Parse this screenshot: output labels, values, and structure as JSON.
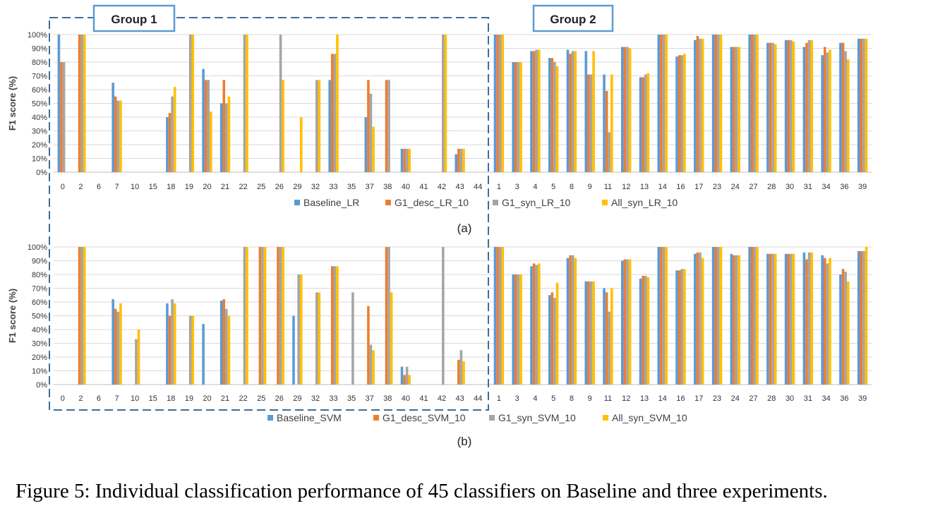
{
  "caption": "Figure 5: Individual classification performance of 45 classifiers on Baseline and three experiments.",
  "colors": {
    "baseline": "#5b9bd5",
    "desc": "#ed7d31",
    "syn": "#a5a5a5",
    "all": "#ffc000",
    "group_box": "#3c6e9a",
    "group_label_border": "#5b9bd5"
  },
  "group_labels": [
    "Group 1",
    "Group 2"
  ],
  "chart_data": [
    {
      "type": "bar",
      "panel_label": "(a)",
      "ylabel": "F1 score (%)",
      "ylim": [
        0,
        100
      ],
      "yticks": [
        "0%",
        "10%",
        "20%",
        "30%",
        "40%",
        "50%",
        "60%",
        "70%",
        "80%",
        "90%",
        "100%"
      ],
      "legend_position": "bottom",
      "groups": [
        {
          "label": "Group 1",
          "categories": [
            "0",
            "2",
            "6",
            "7",
            "10",
            "15",
            "18",
            "19",
            "20",
            "21",
            "22",
            "25",
            "26",
            "29",
            "32",
            "33",
            "35",
            "37",
            "38",
            "40",
            "41",
            "42",
            "43",
            "44"
          ],
          "series": [
            {
              "name": "Baseline_LR",
              "values": [
                100,
                0,
                0,
                65,
                0,
                0,
                40,
                0,
                75,
                50,
                0,
                0,
                0,
                0,
                0,
                67,
                0,
                40,
                0,
                17,
                0,
                0,
                13,
                0
              ]
            },
            {
              "name": "G1_desc_LR_10",
              "values": [
                80,
                100,
                0,
                55,
                0,
                0,
                43,
                0,
                67,
                67,
                0,
                0,
                0,
                0,
                0,
                86,
                0,
                67,
                67,
                17,
                0,
                0,
                17,
                0
              ]
            },
            {
              "name": "G1_syn_LR_10",
              "values": [
                80,
                100,
                0,
                52,
                0,
                0,
                55,
                100,
                67,
                50,
                100,
                0,
                100,
                0,
                67,
                86,
                0,
                57,
                67,
                17,
                0,
                100,
                17,
                0
              ]
            },
            {
              "name": "All_syn_LR_10",
              "values": [
                0,
                100,
                0,
                52,
                0,
                0,
                62,
                100,
                44,
                55,
                100,
                0,
                67,
                40,
                67,
                100,
                0,
                33,
                0,
                17,
                0,
                100,
                17,
                0
              ]
            }
          ]
        },
        {
          "label": "Group 2",
          "categories": [
            "1",
            "3",
            "4",
            "5",
            "8",
            "9",
            "11",
            "12",
            "13",
            "14",
            "16",
            "17",
            "23",
            "24",
            "27",
            "28",
            "30",
            "31",
            "34",
            "36",
            "39"
          ],
          "series": [
            {
              "name": "Baseline_LR",
              "values": [
                100,
                80,
                88,
                83,
                89,
                88,
                71,
                91,
                69,
                100,
                84,
                96,
                100,
                91,
                100,
                94,
                96,
                91,
                85,
                94,
                97
              ]
            },
            {
              "name": "G1_desc_LR_10",
              "values": [
                100,
                80,
                88,
                83,
                86,
                71,
                59,
                91,
                69,
                100,
                85,
                99,
                100,
                91,
                100,
                94,
                96,
                94,
                91,
                94,
                97
              ]
            },
            {
              "name": "G1_syn_LR_10",
              "values": [
                100,
                80,
                89,
                80,
                88,
                71,
                29,
                91,
                71,
                100,
                85,
                97,
                100,
                91,
                100,
                94,
                96,
                96,
                87,
                88,
                97
              ]
            },
            {
              "name": "All_syn_LR_10",
              "values": [
                100,
                80,
                89,
                77,
                88,
                88,
                71,
                90,
                72,
                100,
                86,
                97,
                100,
                91,
                100,
                93,
                95,
                96,
                89,
                82,
                97
              ]
            }
          ]
        }
      ]
    },
    {
      "type": "bar",
      "panel_label": "(b)",
      "ylabel": "F1 score (%)",
      "ylim": [
        0,
        100
      ],
      "yticks": [
        "0%",
        "10%",
        "20%",
        "30%",
        "40%",
        "50%",
        "60%",
        "70%",
        "80%",
        "90%",
        "100%"
      ],
      "legend_position": "bottom",
      "groups": [
        {
          "label": "Group 1",
          "categories": [
            "0",
            "2",
            "6",
            "7",
            "10",
            "15",
            "18",
            "19",
            "20",
            "21",
            "22",
            "25",
            "26",
            "29",
            "32",
            "33",
            "35",
            "37",
            "38",
            "40",
            "41",
            "42",
            "43",
            "44"
          ],
          "series": [
            {
              "name": "Baseline_SVM",
              "values": [
                0,
                0,
                0,
                62,
                0,
                0,
                59,
                0,
                44,
                61,
                0,
                0,
                0,
                50,
                0,
                0,
                0,
                0,
                0,
                13,
                0,
                0,
                0,
                0
              ]
            },
            {
              "name": "G1_desc_SVM_10",
              "values": [
                0,
                100,
                0,
                55,
                0,
                0,
                50,
                0,
                0,
                62,
                0,
                100,
                100,
                0,
                0,
                86,
                0,
                57,
                100,
                7,
                0,
                0,
                18,
                0
              ]
            },
            {
              "name": "G1_syn_SVM_10",
              "values": [
                0,
                100,
                0,
                53,
                33,
                0,
                62,
                50,
                0,
                55,
                100,
                100,
                100,
                80,
                67,
                86,
                67,
                29,
                100,
                13,
                0,
                100,
                25,
                0
              ]
            },
            {
              "name": "All_syn_SVM_10",
              "values": [
                0,
                100,
                0,
                59,
                40,
                0,
                59,
                50,
                0,
                50,
                100,
                100,
                100,
                80,
                67,
                86,
                0,
                25,
                67,
                7,
                0,
                0,
                17,
                0
              ]
            }
          ]
        },
        {
          "label": "Group 2",
          "categories": [
            "1",
            "3",
            "4",
            "5",
            "8",
            "9",
            "11",
            "12",
            "13",
            "14",
            "16",
            "17",
            "23",
            "24",
            "27",
            "28",
            "30",
            "31",
            "34",
            "36",
            "39"
          ],
          "series": [
            {
              "name": "Baseline_SVM",
              "values": [
                100,
                80,
                86,
                65,
                92,
                75,
                70,
                90,
                77,
                100,
                83,
                95,
                100,
                95,
                100,
                95,
                95,
                96,
                94,
                80,
                97
              ]
            },
            {
              "name": "G1_desc_SVM_10",
              "values": [
                100,
                80,
                88,
                67,
                94,
                75,
                67,
                91,
                79,
                100,
                83,
                96,
                100,
                94,
                100,
                95,
                95,
                91,
                92,
                84,
                97
              ]
            },
            {
              "name": "G1_syn_SVM_10",
              "values": [
                100,
                80,
                87,
                63,
                94,
                75,
                53,
                91,
                79,
                100,
                84,
                96,
                100,
                94,
                100,
                95,
                95,
                96,
                88,
                82,
                97
              ]
            },
            {
              "name": "All_syn_SVM_10",
              "values": [
                100,
                80,
                88,
                74,
                92,
                75,
                70,
                91,
                78,
                100,
                84,
                92,
                100,
                94,
                100,
                95,
                95,
                96,
                92,
                75,
                100
              ]
            }
          ]
        }
      ]
    }
  ]
}
